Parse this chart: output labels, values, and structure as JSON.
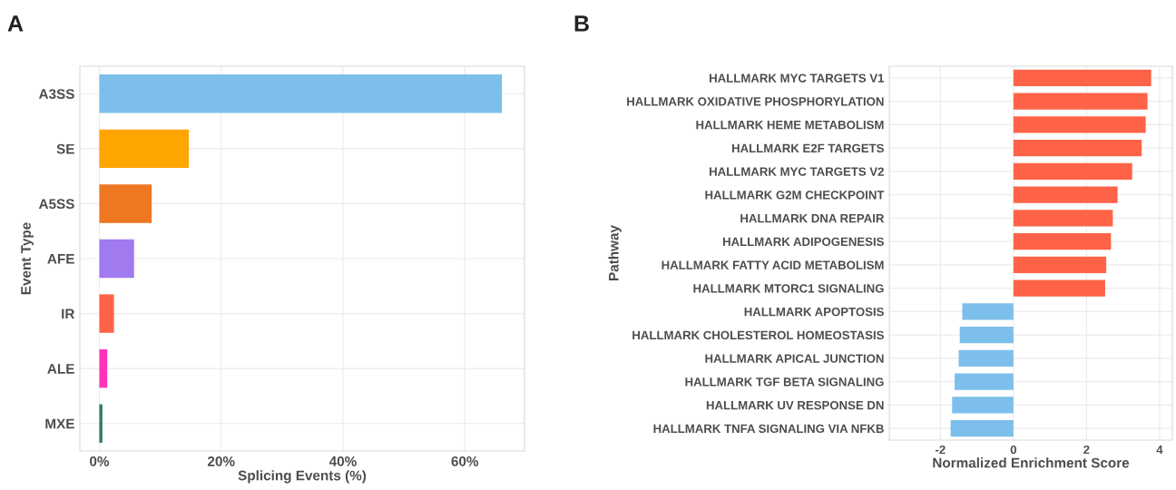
{
  "chart_data": [
    {
      "type": "bar",
      "orientation": "horizontal",
      "title": "A",
      "xlabel": "Splicing Events (%)",
      "ylabel": "Event Type",
      "categories": [
        "A3SS",
        "SE",
        "A5SS",
        "AFE",
        "IR",
        "ALE",
        "MXE"
      ],
      "values": [
        66.1,
        14.7,
        8.6,
        5.7,
        2.4,
        1.3,
        0.5
      ],
      "colors": [
        "#7dbfec",
        "#ffa500",
        "#ee7722",
        "#a07aee",
        "#ff6347",
        "#ff33bb",
        "#2e7d5e"
      ],
      "xlim": [
        -3.2,
        69.8
      ],
      "xticks": [
        {
          "value": 0,
          "label": "0%"
        },
        {
          "value": 20,
          "label": "20%"
        },
        {
          "value": 40,
          "label": "40%"
        },
        {
          "value": 60,
          "label": "60%"
        }
      ],
      "grid": true
    },
    {
      "type": "bar",
      "orientation": "horizontal",
      "title": "B",
      "xlabel": "Normalized Enrichment Score",
      "ylabel": "Pathway",
      "categories": [
        "HALLMARK MYC TARGETS V1",
        "HALLMARK OXIDATIVE PHOSPHORYLATION",
        "HALLMARK HEME METABOLISM",
        "HALLMARK E2F TARGETS",
        "HALLMARK MYC TARGETS V2",
        "HALLMARK G2M CHECKPOINT",
        "HALLMARK DNA REPAIR",
        "HALLMARK ADIPOGENESIS",
        "HALLMARK FATTY ACID METABOLISM",
        "HALLMARK MTORC1 SIGNALING",
        "HALLMARK APOPTOSIS",
        "HALLMARK CHOLESTEROL HOMEOSTASIS",
        "HALLMARK APICAL JUNCTION",
        "HALLMARK TGF BETA SIGNALING",
        "HALLMARK UV RESPONSE DN",
        "HALLMARK TNFA SIGNALING VIA NFKB"
      ],
      "values": [
        3.77,
        3.67,
        3.62,
        3.51,
        3.25,
        2.85,
        2.72,
        2.67,
        2.54,
        2.51,
        -1.4,
        -1.47,
        -1.5,
        -1.61,
        -1.68,
        -1.72
      ],
      "colors": [
        "#ff6347",
        "#ff6347",
        "#ff6347",
        "#ff6347",
        "#ff6347",
        "#ff6347",
        "#ff6347",
        "#ff6347",
        "#ff6347",
        "#ff6347",
        "#7dbfec",
        "#7dbfec",
        "#7dbfec",
        "#7dbfec",
        "#7dbfec",
        "#7dbfec"
      ],
      "xlim": [
        -3.4,
        4.35
      ],
      "xticks": [
        -2,
        0,
        2,
        4
      ],
      "grid": true
    }
  ]
}
